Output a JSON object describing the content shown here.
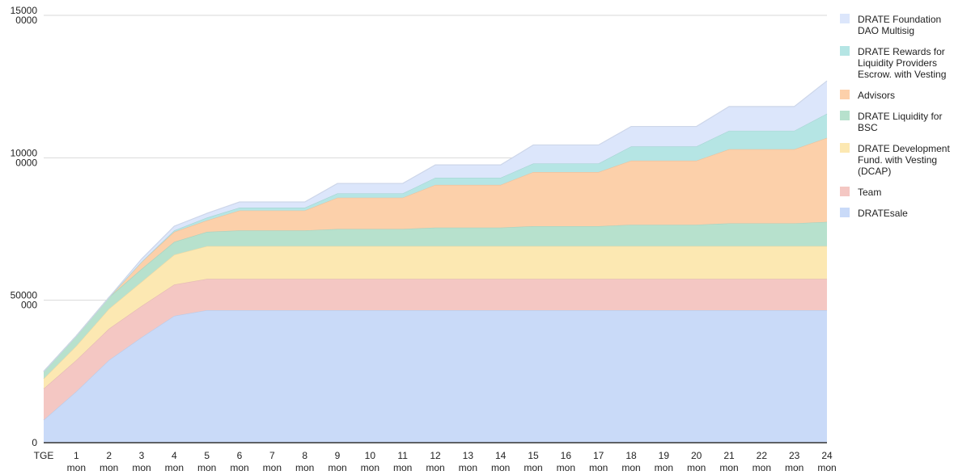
{
  "chart_data": {
    "type": "area",
    "stacked": true,
    "title": "",
    "xlabel": "",
    "ylabel": "",
    "ylim": [
      0,
      150000000
    ],
    "grid": true,
    "legend_position": "right",
    "y_ticks": [
      {
        "value": 0,
        "lines": [
          "0"
        ]
      },
      {
        "value": 50000000,
        "lines": [
          "50000",
          "000"
        ]
      },
      {
        "value": 100000000,
        "lines": [
          "10000",
          "0000"
        ]
      },
      {
        "value": 150000000,
        "lines": [
          "15000",
          "0000"
        ]
      }
    ],
    "categories": [
      {
        "lines": [
          "TGE"
        ]
      },
      {
        "lines": [
          "1",
          "mon"
        ]
      },
      {
        "lines": [
          "2",
          "mon"
        ]
      },
      {
        "lines": [
          "3",
          "mon"
        ]
      },
      {
        "lines": [
          "4",
          "mon"
        ]
      },
      {
        "lines": [
          "5",
          "mon"
        ]
      },
      {
        "lines": [
          "6",
          "mon"
        ]
      },
      {
        "lines": [
          "7",
          "mon"
        ]
      },
      {
        "lines": [
          "8",
          "mon"
        ]
      },
      {
        "lines": [
          "9",
          "mon"
        ]
      },
      {
        "lines": [
          "10",
          "mon"
        ]
      },
      {
        "lines": [
          "11",
          "mon"
        ]
      },
      {
        "lines": [
          "12",
          "mon"
        ]
      },
      {
        "lines": [
          "13",
          "mon"
        ]
      },
      {
        "lines": [
          "14",
          "mon"
        ]
      },
      {
        "lines": [
          "15",
          "mon"
        ]
      },
      {
        "lines": [
          "16",
          "mon"
        ]
      },
      {
        "lines": [
          "17",
          "mon"
        ]
      },
      {
        "lines": [
          "18",
          "mon"
        ]
      },
      {
        "lines": [
          "19",
          "mon"
        ]
      },
      {
        "lines": [
          "20",
          "mon"
        ]
      },
      {
        "lines": [
          "21",
          "mon"
        ]
      },
      {
        "lines": [
          "22",
          "mon"
        ]
      },
      {
        "lines": [
          "23",
          "mon"
        ]
      },
      {
        "lines": [
          "24",
          "mon"
        ]
      }
    ],
    "series": [
      {
        "name": "DRATEsale",
        "legend_lines": [
          "DRATEsale"
        ],
        "color": "#c9daf8",
        "values": [
          8000000,
          18000000,
          29000000,
          37000000,
          44500000,
          46500000,
          46500000,
          46500000,
          46500000,
          46500000,
          46500000,
          46500000,
          46500000,
          46500000,
          46500000,
          46500000,
          46500000,
          46500000,
          46500000,
          46500000,
          46500000,
          46500000,
          46500000,
          46500000,
          46500000
        ]
      },
      {
        "name": "Team",
        "legend_lines": [
          "Team"
        ],
        "color": "#f4c7c3",
        "values": [
          11000000,
          11000000,
          11000000,
          11000000,
          11000000,
          11000000,
          11000000,
          11000000,
          11000000,
          11000000,
          11000000,
          11000000,
          11000000,
          11000000,
          11000000,
          11000000,
          11000000,
          11000000,
          11000000,
          11000000,
          11000000,
          11000000,
          11000000,
          11000000,
          11000000
        ]
      },
      {
        "name": "DRATE Development Fund. with Vesting (DCAP)",
        "legend_lines": [
          "DRATE Development",
          "Fund. with Vesting",
          "(DCAP)"
        ],
        "color": "#fce8b2",
        "values": [
          3500000,
          5000000,
          7000000,
          8500000,
          10500000,
          11500000,
          11500000,
          11500000,
          11500000,
          11500000,
          11500000,
          11500000,
          11500000,
          11500000,
          11500000,
          11500000,
          11500000,
          11500000,
          11500000,
          11500000,
          11500000,
          11500000,
          11500000,
          11500000,
          11500000
        ]
      },
      {
        "name": "DRATE Liquidity for BSC",
        "legend_lines": [
          "DRATE Liquidity for",
          "BSC"
        ],
        "color": "#b7e1cd",
        "values": [
          2500000,
          3500000,
          4000000,
          4500000,
          4500000,
          5000000,
          5500000,
          5500000,
          5500000,
          6000000,
          6000000,
          6000000,
          6500000,
          6500000,
          6500000,
          7000000,
          7000000,
          7000000,
          7500000,
          7500000,
          7500000,
          8000000,
          8000000,
          8000000,
          8500000
        ]
      },
      {
        "name": "Advisors",
        "legend_lines": [
          "Advisors"
        ],
        "color": "#fcd0aa",
        "values": [
          0,
          0,
          0,
          2500000,
          3500000,
          4000000,
          7000000,
          7000000,
          7000000,
          11000000,
          11000000,
          11000000,
          15000000,
          15000000,
          15000000,
          19000000,
          19000000,
          19000000,
          22500000,
          22500000,
          22500000,
          26000000,
          26000000,
          26000000,
          29500000
        ]
      },
      {
        "name": "DRATE Rewards for Liquidity Providers Escrow. with Vesting",
        "legend_lines": [
          "DRATE Rewards for",
          "Liquidity Providers",
          "Escrow. with Vesting"
        ],
        "color": "#b5e5e4",
        "values": [
          0,
          0,
          0,
          0,
          500000,
          1000000,
          1000000,
          1000000,
          1000000,
          1500000,
          1500000,
          1500000,
          2500000,
          2500000,
          2500000,
          3000000,
          3000000,
          3000000,
          5000000,
          5000000,
          5000000,
          6500000,
          6500000,
          6500000,
          8500000
        ]
      },
      {
        "name": "DRATE Foundation DAO Multisig",
        "legend_lines": [
          "DRATE Foundation",
          "DAO Multisig"
        ],
        "color": "#dce6fb",
        "values": [
          0,
          0,
          0,
          1000000,
          1500000,
          1500000,
          2000000,
          2000000,
          2000000,
          3500000,
          3500000,
          3500000,
          4500000,
          4500000,
          4500000,
          6500000,
          6500000,
          6500000,
          7000000,
          7000000,
          7000000,
          8500000,
          8500000,
          8500000,
          11500000
        ]
      }
    ]
  }
}
